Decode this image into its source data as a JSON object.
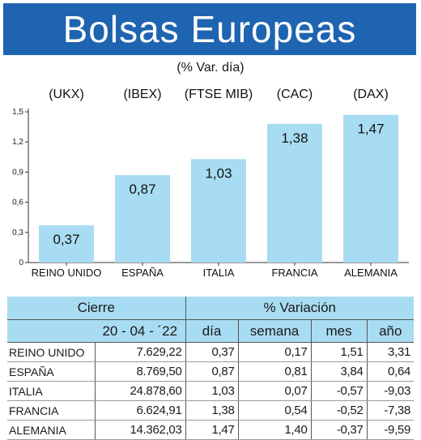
{
  "header": {
    "title": "Bolsas Europeas",
    "subtitle": "(% Var. día)"
  },
  "chart_data": {
    "type": "bar",
    "indices": [
      "(UKX)",
      "(IBEX)",
      "(FTSE MIB)",
      "(CAC)",
      "(DAX)"
    ],
    "categories": [
      "REINO UNIDO",
      "ESPAÑA",
      "ITALIA",
      "FRANCIA",
      "ALEMANIA"
    ],
    "values": [
      0.37,
      0.87,
      1.03,
      1.38,
      1.47
    ],
    "value_labels": [
      "0,37",
      "0,87",
      "1,03",
      "1,38",
      "1,47"
    ],
    "yticks": [
      0,
      0.3,
      0.6,
      0.9,
      1.2,
      1.5
    ],
    "ytick_labels": [
      "0",
      "0,3",
      "0,6",
      "0,9",
      "1,2",
      "1,5"
    ],
    "ylim": [
      0,
      1.5
    ],
    "grid": false,
    "bar_color": "#a8dcf2"
  },
  "table": {
    "header_cierre": "Cierre",
    "header_variacion": "% Variación",
    "date": "20 - 04 - ´22",
    "col_dia": "día",
    "col_semana": "semana",
    "col_mes": "mes",
    "col_ano": "año",
    "rows": [
      {
        "name": "REINO UNIDO",
        "cierre": "7.629,22",
        "dia": "0,37",
        "semana": "0,17",
        "mes": "1,51",
        "ano": "3,31"
      },
      {
        "name": "ESPAÑA",
        "cierre": "8.769,50",
        "dia": "0,87",
        "semana": "0,81",
        "mes": "3,84",
        "ano": "0,64"
      },
      {
        "name": "ITALIA",
        "cierre": "24.878,60",
        "dia": "1,03",
        "semana": "0,07",
        "mes": "-0,57",
        "ano": "-9,03"
      },
      {
        "name": "FRANCIA",
        "cierre": "6.624,91",
        "dia": "1,38",
        "semana": "0,54",
        "mes": "-0,52",
        "ano": "-7,38"
      },
      {
        "name": "ALEMANIA",
        "cierre": "14.362,03",
        "dia": "1,47",
        "semana": "1,40",
        "mes": "-0,37",
        "ano": "-9,59"
      }
    ]
  }
}
